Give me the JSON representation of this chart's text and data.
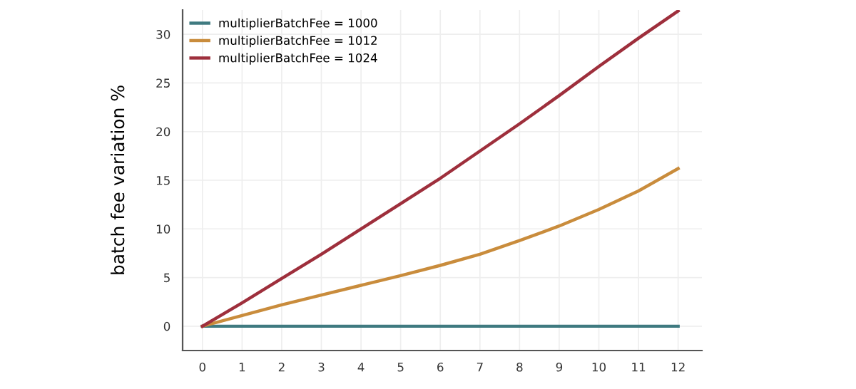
{
  "chart_data": {
    "type": "line",
    "ylabel": "batch fee variation %",
    "x": [
      0,
      1,
      2,
      3,
      4,
      5,
      6,
      7,
      8,
      9,
      10,
      11,
      12
    ],
    "series": [
      {
        "name": "multiplierBatchFee = 1000",
        "color": "#3f7a80",
        "values": [
          0,
          0,
          0,
          0,
          0,
          0,
          0,
          0,
          0,
          0,
          0,
          0,
          0
        ]
      },
      {
        "name": "multiplierBatchFee = 1012",
        "color": "#c98c3c",
        "values": [
          0,
          1.1,
          2.2,
          3.2,
          4.2,
          5.2,
          6.25,
          7.4,
          8.8,
          10.3,
          12.0,
          13.9,
          16.2
        ]
      },
      {
        "name": "multiplierBatchFee = 1024",
        "color": "#9e2f3c",
        "values": [
          0,
          2.4,
          4.9,
          7.4,
          10,
          12.6,
          15.2,
          18,
          20.8,
          23.7,
          26.7,
          29.6,
          32.4
        ]
      }
    ],
    "xlim": [
      -0.5,
      12.6
    ],
    "ylim": [
      -2.5,
      32.5
    ],
    "xticks": [
      0,
      1,
      2,
      3,
      4,
      5,
      6,
      7,
      8,
      9,
      10,
      11,
      12
    ],
    "yticks": [
      0,
      5,
      10,
      15,
      20,
      25,
      30
    ],
    "grid": true,
    "legend": "top left",
    "marker": "none",
    "line_style": "solid"
  }
}
